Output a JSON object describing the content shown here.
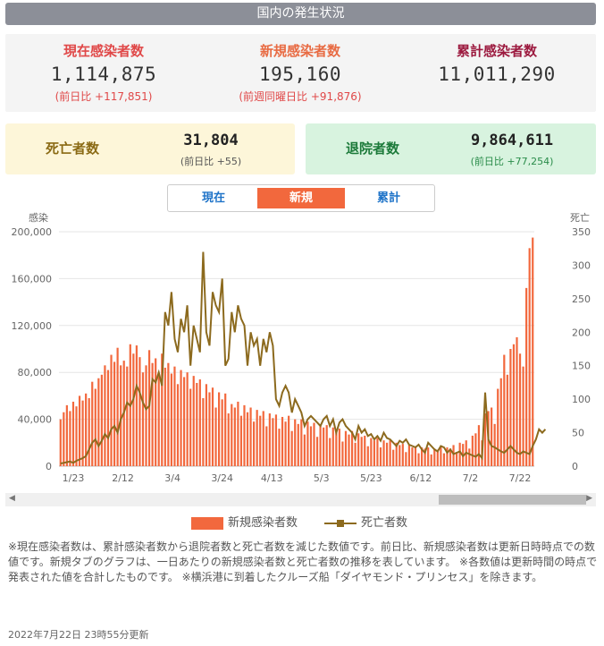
{
  "header": {
    "title": "国内の発生状況"
  },
  "stats": {
    "current": {
      "label": "現在感染者数",
      "value": "1,114,875",
      "sub": "(前日比 +117,851)"
    },
    "new": {
      "label": "新規感染者数",
      "value": "195,160",
      "sub": "(前週同曜日比 +91,876)"
    },
    "total": {
      "label": "累計感染者数",
      "value": "11,011,290"
    }
  },
  "deaths": {
    "label": "死亡者数",
    "value": "31,804",
    "sub": "(前日比 +55)"
  },
  "discharged": {
    "label": "退院者数",
    "value": "9,864,611",
    "sub": "(前日比 +77,254)"
  },
  "tabs": [
    {
      "label": "現在",
      "active": false
    },
    {
      "label": "新規",
      "active": true
    },
    {
      "label": "累計",
      "active": false
    }
  ],
  "chart_data": {
    "type": "bar",
    "left_axis_label": "感染",
    "right_axis_label": "死亡",
    "left_ticks": [
      "200,000",
      "160,000",
      "120,000",
      "80,000",
      "40,000",
      "0"
    ],
    "right_ticks": [
      "350",
      "300",
      "250",
      "200",
      "150",
      "100",
      "50",
      "0"
    ],
    "x_ticks": [
      "1/23",
      "2/12",
      "3/4",
      "3/24",
      "4/13",
      "5/3",
      "5/23",
      "6/12",
      "7/2",
      "7/22"
    ],
    "ylim": [
      0,
      200000
    ],
    "y2lim": [
      0,
      350
    ],
    "series": [
      {
        "name": "新規感染者数",
        "kind": "bar",
        "color": "#f2683d",
        "values": [
          40000,
          46000,
          52000,
          47000,
          55000,
          51000,
          60000,
          56000,
          62000,
          58000,
          72000,
          66000,
          75000,
          78000,
          86000,
          82000,
          95000,
          89000,
          101000,
          86000,
          90000,
          85000,
          104000,
          96000,
          103000,
          93000,
          80000,
          86000,
          99000,
          88000,
          92000,
          78000,
          96000,
          84000,
          88000,
          79000,
          85000,
          70000,
          82000,
          76000,
          80000,
          66000,
          77000,
          71000,
          74000,
          58000,
          70000,
          63000,
          67000,
          50000,
          63000,
          57000,
          62000,
          45000,
          53000,
          50000,
          55000,
          43000,
          52000,
          46000,
          50000,
          38000,
          48000,
          43000,
          47000,
          34000,
          45000,
          41000,
          44000,
          32000,
          42000,
          38000,
          43000,
          30000,
          40000,
          36000,
          40000,
          27000,
          38000,
          34000,
          37000,
          25000,
          35000,
          33000,
          35000,
          24000,
          33000,
          30000,
          32000,
          21000,
          30000,
          27000,
          30000,
          20000,
          28000,
          25000,
          26000,
          17000,
          24000,
          22000,
          24000,
          16000,
          22000,
          20000,
          22000,
          14000,
          20000,
          18000,
          19000,
          12000,
          18000,
          16000,
          17000,
          11000,
          16000,
          15000,
          16000,
          10000,
          15000,
          14000,
          16000,
          11000,
          16000,
          15000,
          18000,
          12000,
          20000,
          19000,
          22000,
          15000,
          26000,
          28000,
          35000,
          22000,
          45000,
          47000,
          50000,
          36000,
          66000,
          75000,
          95000,
          78000,
          100000,
          104000,
          110000,
          96000,
          85000,
          152000,
          186000,
          195000
        ]
      },
      {
        "name": "死亡者数",
        "kind": "line",
        "color": "#8c6a1e",
        "values": [
          4,
          5,
          6,
          7,
          5,
          8,
          10,
          12,
          15,
          25,
          35,
          40,
          30,
          38,
          48,
          42,
          55,
          60,
          50,
          70,
          80,
          95,
          90,
          100,
          120,
          110,
          95,
          85,
          90,
          130,
          125,
          140,
          120,
          230,
          210,
          260,
          190,
          170,
          220,
          200,
          240,
          150,
          210,
          190,
          170,
          320,
          200,
          180,
          260,
          240,
          230,
          280,
          150,
          160,
          230,
          200,
          240,
          220,
          210,
          150,
          200,
          180,
          190,
          150,
          190,
          170,
          200,
          180,
          100,
          90,
          110,
          120,
          110,
          80,
          100,
          90,
          80,
          60,
          70,
          75,
          70,
          65,
          60,
          70,
          75,
          60,
          70,
          50,
          65,
          70,
          60,
          55,
          50,
          40,
          60,
          50,
          55,
          45,
          48,
          40,
          45,
          38,
          50,
          42,
          40,
          35,
          30,
          38,
          35,
          40,
          32,
          30,
          28,
          32,
          25,
          20,
          35,
          30,
          25,
          22,
          30,
          28,
          20,
          25,
          18,
          20,
          22,
          15,
          20,
          18,
          16,
          14,
          18,
          12,
          110,
          40,
          30,
          28,
          25,
          22,
          20,
          25,
          30,
          25,
          20,
          18,
          22,
          20,
          18,
          30,
          40,
          55,
          50,
          55
        ]
      }
    ]
  },
  "scrollbar": {
    "left_arrow": "◀",
    "right_arrow": "▶"
  },
  "legend": [
    {
      "label": "新規感染者数",
      "color": "#f2683d"
    },
    {
      "label": "死亡者数",
      "color": "#8c6a1e"
    }
  ],
  "note": "※現在感染者数は、累計感染者数から退院者数と死亡者数を減じた数値です。前日比、新規感染者数は更新日時時点での数値です。新規タブのグラフは、一日あたりの新規感染者数と死亡者数の推移を表しています。 ※各数値は更新時間の時点で発表された値を合計したものです。 ※横浜港に到着したクルーズ船「ダイヤモンド・プリンセス」を除きます。",
  "updated": "2022年7月22日 23時55分更新",
  "colors": {
    "current_label": "#e04848",
    "new_label": "#e86b43",
    "total_label": "#9c1a3f",
    "deaths_bg": "#fdf6d9",
    "deaths_label": "#8a6a14",
    "discharged_bg": "#d8f3df",
    "discharged_label": "#1c7a3a",
    "sub_red": "#e04848",
    "sub_green": "#2a8c4a"
  }
}
